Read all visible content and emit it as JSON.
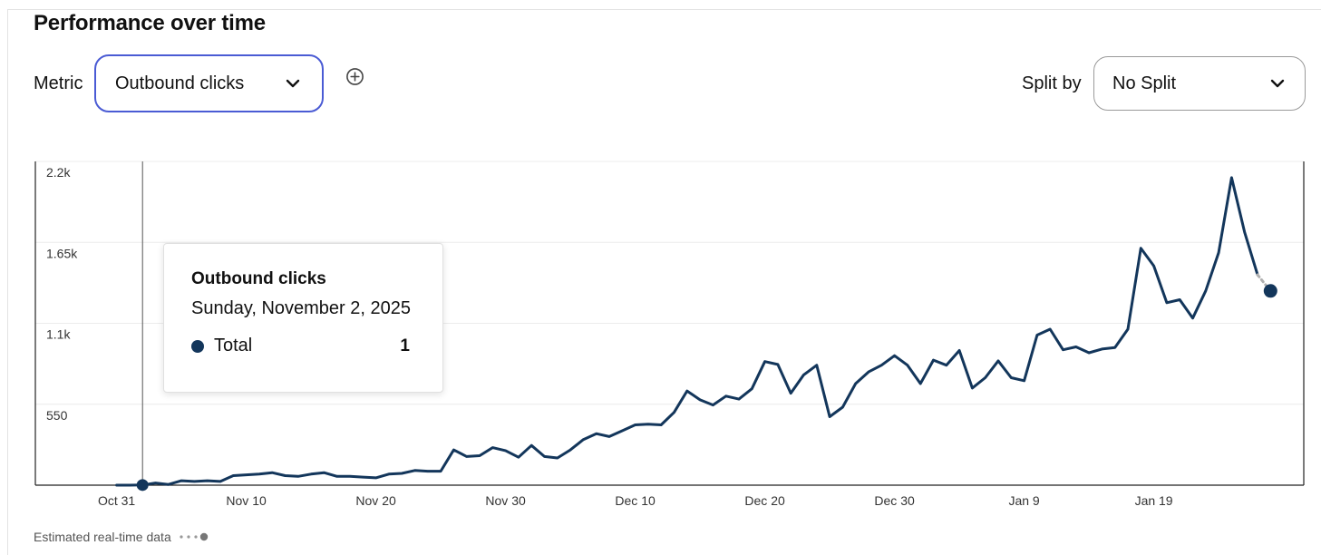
{
  "header": {
    "title": "Performance over time"
  },
  "controls": {
    "metric_label": "Metric",
    "metric_value": "Outbound clicks",
    "split_label": "Split by",
    "split_value": "No Split"
  },
  "icons": {
    "dropdown": "chevron-down-icon",
    "add": "plus-circle-icon",
    "legend": "dot-icon"
  },
  "tooltip": {
    "title": "Outbound clicks",
    "date": "Sunday, November 2, 2025",
    "series_name": "Total",
    "value": "1"
  },
  "footer": {
    "text": "Estimated real-time data"
  },
  "colors": {
    "line": "#13365b",
    "accent": "#4a5bd4",
    "estimated": "#b0b0b0"
  },
  "chart_data": {
    "type": "line",
    "x_start": "2025-10-31",
    "x_tick_labels": [
      "Oct 31",
      "Nov 10",
      "Nov 20",
      "Nov 30",
      "Dec 10",
      "Dec 20",
      "Dec 30",
      "Jan 9",
      "Jan 19"
    ],
    "y_tick_labels": [
      "550",
      "1.1k",
      "1.65k",
      "2.2k"
    ],
    "y_ticks": [
      550,
      1100,
      1650,
      2200
    ],
    "ylim": [
      0,
      2200
    ],
    "grid": true,
    "highlight": {
      "date": "2025-11-02",
      "value": 1
    },
    "series": [
      {
        "values": [
          0,
          0,
          1,
          15,
          5,
          30,
          25,
          30,
          25,
          65,
          70,
          75,
          85,
          65,
          60,
          75,
          85,
          60,
          60,
          55,
          50,
          75,
          80,
          100,
          95,
          95,
          240,
          195,
          200,
          255,
          235,
          190,
          270,
          195,
          185,
          240,
          310,
          350,
          330,
          370,
          410,
          415,
          410,
          495,
          640,
          580,
          545,
          605,
          585,
          655,
          840,
          820,
          625,
          750,
          815,
          465,
          530,
          690,
          770,
          815,
          880,
          815,
          690,
          850,
          815,
          915,
          660,
          730,
          845,
          730,
          710,
          1020,
          1060,
          920,
          940,
          900,
          925,
          935,
          1060,
          1610,
          1490,
          1240,
          1260,
          1135,
          1320,
          1580,
          2090,
          1720,
          1430
        ]
      }
    ],
    "estimated": {
      "values": [
        1430,
        1320
      ]
    }
  }
}
